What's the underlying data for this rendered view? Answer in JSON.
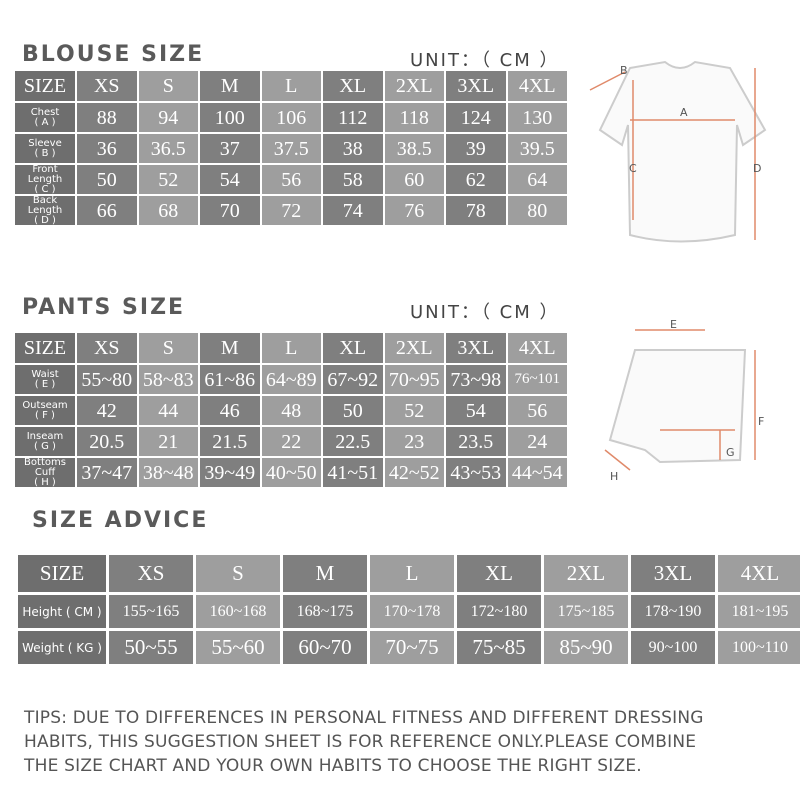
{
  "blouse": {
    "title": "BLOUSE SIZE",
    "unit": "UNIT：（ CM ）",
    "header": [
      "SIZE",
      "XS",
      "S",
      "M",
      "L",
      "XL",
      "2XL",
      "3XL",
      "4XL"
    ],
    "rows": [
      {
        "label": "Chest",
        "sub": "( A )",
        "values": [
          "88",
          "94",
          "100",
          "106",
          "112",
          "118",
          "124",
          "130"
        ]
      },
      {
        "label": "Sleeve",
        "sub": "( B )",
        "values": [
          "36",
          "36.5",
          "37",
          "37.5",
          "38",
          "38.5",
          "39",
          "39.5"
        ]
      },
      {
        "label": "Front Length",
        "sub": "( C )",
        "values": [
          "50",
          "52",
          "54",
          "56",
          "58",
          "60",
          "62",
          "64"
        ]
      },
      {
        "label": "Back Length",
        "sub": "( D )",
        "values": [
          "66",
          "68",
          "70",
          "72",
          "74",
          "76",
          "78",
          "80"
        ]
      }
    ],
    "diagram_labels": [
      "A",
      "B",
      "C",
      "D"
    ]
  },
  "pants": {
    "title": "PANTS SIZE",
    "unit": "UNIT：（ CM ）",
    "header": [
      "SIZE",
      "XS",
      "S",
      "M",
      "L",
      "XL",
      "2XL",
      "3XL",
      "4XL"
    ],
    "rows": [
      {
        "label": "Waist",
        "sub": "( E )",
        "values": [
          "55~80",
          "58~83",
          "61~86",
          "64~89",
          "67~92",
          "70~95",
          "73~98",
          "76~101"
        ]
      },
      {
        "label": "Outseam",
        "sub": "( F )",
        "values": [
          "42",
          "44",
          "46",
          "48",
          "50",
          "52",
          "54",
          "56"
        ]
      },
      {
        "label": "Inseam",
        "sub": "( G )",
        "values": [
          "20.5",
          "21",
          "21.5",
          "22",
          "22.5",
          "23",
          "23.5",
          "24"
        ]
      },
      {
        "label": "Bottoms Cuff",
        "sub": "( H )",
        "values": [
          "37~47",
          "38~48",
          "39~49",
          "40~50",
          "41~51",
          "42~52",
          "43~53",
          "44~54"
        ]
      }
    ],
    "diagram_labels": [
      "E",
      "F",
      "G",
      "H"
    ]
  },
  "advice": {
    "title": "SIZE ADVICE",
    "header": [
      "SIZE",
      "XS",
      "S",
      "M",
      "L",
      "XL",
      "2XL",
      "3XL",
      "4XL"
    ],
    "rows": [
      {
        "label": "Height ( CM )",
        "values": [
          "155~165",
          "160~168",
          "168~175",
          "170~178",
          "172~180",
          "175~185",
          "178~190",
          "181~195"
        ]
      },
      {
        "label": "Weight ( KG )",
        "values": [
          "50~55",
          "55~60",
          "60~70",
          "70~75",
          "75~85",
          "85~90",
          "90~100",
          "100~110"
        ]
      }
    ]
  },
  "tips": [
    "TIPS: DUE TO DIFFERENCES IN PERSONAL FITNESS AND DIFFERENT DRESSING",
    "HABITS, THIS SUGGESTION SHEET IS FOR REFERENCE ONLY.PLEASE COMBINE",
    "THE SIZE CHART AND YOUR OWN HABITS TO CHOOSE THE RIGHT SIZE."
  ]
}
